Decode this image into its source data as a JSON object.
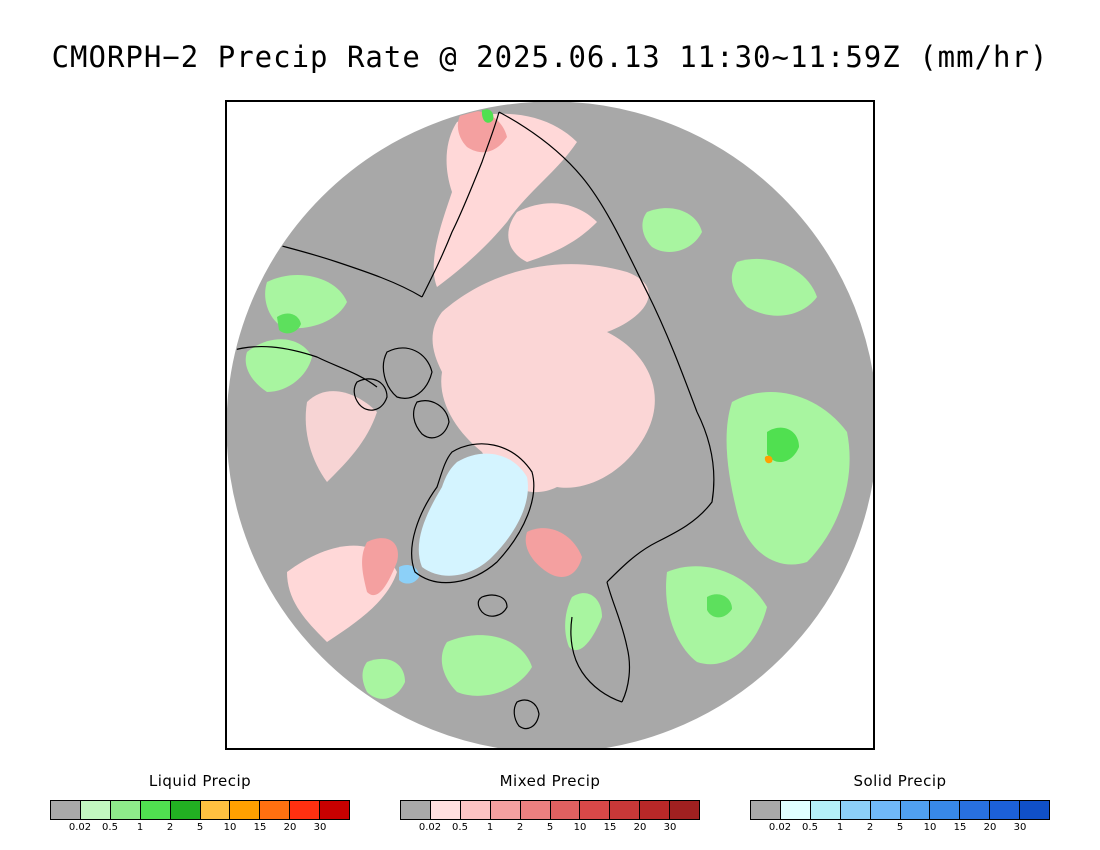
{
  "title": "CMORPH−2 Precip Rate @ 2025.06.13 11:30~11:59Z (mm/hr)",
  "map": {
    "projection": "north-polar-stereographic",
    "colors": {
      "no_precip": "#a8a8a8",
      "light_mixed": "#ffd8d8",
      "liquid_light": "#a8f5a0",
      "liquid_mid": "#5de05d",
      "solid_light": "#d4f4ff",
      "mixed_mid": "#f4a0a0",
      "coastline": "#000000"
    }
  },
  "legends": [
    {
      "title": "Liquid Precip",
      "colors": [
        "#a8a8a8",
        "#c2f7bf",
        "#8eeb8a",
        "#50e050",
        "#22b022",
        "#ffc040",
        "#ffa000",
        "#ff7010",
        "#ff3010",
        "#c80000"
      ],
      "ticks": [
        "0.02",
        "0.5",
        "1",
        "2",
        "5",
        "10",
        "15",
        "20",
        "30"
      ]
    },
    {
      "title": "Mixed Precip",
      "colors": [
        "#a8a8a8",
        "#ffe0e0",
        "#fcc4c4",
        "#f4a0a0",
        "#ec8080",
        "#e06060",
        "#d84848",
        "#c83838",
        "#b82828",
        "#a02020"
      ],
      "ticks": [
        "0.02",
        "0.5",
        "1",
        "2",
        "5",
        "10",
        "15",
        "20",
        "30"
      ]
    },
    {
      "title": "Solid Precip",
      "colors": [
        "#a8a8a8",
        "#e0ffff",
        "#b4f0f8",
        "#8cd0f8",
        "#70b8f8",
        "#50a0f0",
        "#3888e8",
        "#2870e0",
        "#1c60d8",
        "#1050c8"
      ],
      "ticks": [
        "0.02",
        "0.5",
        "1",
        "2",
        "5",
        "10",
        "15",
        "20",
        "30"
      ]
    }
  ]
}
